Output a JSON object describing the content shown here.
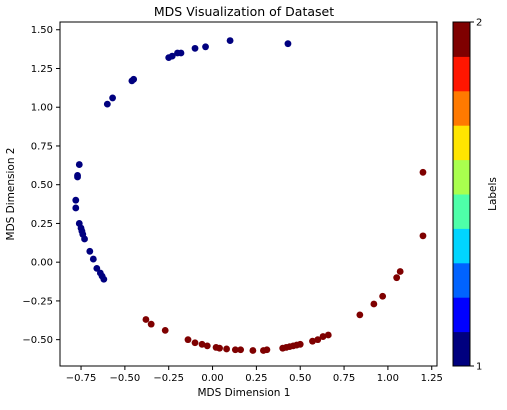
{
  "chart_data": {
    "type": "scatter",
    "title": "MDS Visualization of Dataset",
    "xlabel": "MDS Dimension 1",
    "ylabel": "MDS Dimension 2",
    "xlim": [
      -0.87,
      1.28
    ],
    "ylim": [
      -0.67,
      1.55
    ],
    "xticks": [
      -0.75,
      -0.5,
      -0.25,
      0.0,
      0.25,
      0.5,
      0.75,
      1.0,
      1.25
    ],
    "xtick_labels": [
      "−0.75",
      "−0.50",
      "−0.25",
      "0.00",
      "0.25",
      "0.50",
      "0.75",
      "1.00",
      "1.25"
    ],
    "yticks": [
      -0.5,
      -0.25,
      0.0,
      0.25,
      0.5,
      0.75,
      1.0,
      1.25,
      1.5
    ],
    "ytick_labels": [
      "−0.50",
      "−0.25",
      "0.00",
      "0.25",
      "0.50",
      "0.75",
      "1.00",
      "1.25",
      "1.50"
    ],
    "grid": false,
    "colormap": "jet",
    "colorbar": {
      "label": "Labels",
      "min": 1,
      "max": 2,
      "tick_labels": [
        "1",
        "2"
      ],
      "segments": [
        "#00007f",
        "#0000ff",
        "#0063ff",
        "#00d5ff",
        "#4effa9",
        "#a9ff4e",
        "#ffe500",
        "#ff7a00",
        "#ff1600",
        "#7f0000"
      ]
    },
    "series": [
      {
        "label_value": 1,
        "color": "#00007f",
        "points": [
          [
            0.43,
            1.41
          ],
          [
            0.1,
            1.43
          ],
          [
            -0.04,
            1.39
          ],
          [
            -0.1,
            1.38
          ],
          [
            -0.18,
            1.35
          ],
          [
            -0.2,
            1.35
          ],
          [
            -0.23,
            1.33
          ],
          [
            -0.25,
            1.32
          ],
          [
            -0.45,
            1.18
          ],
          [
            -0.46,
            1.17
          ],
          [
            -0.57,
            1.06
          ],
          [
            -0.6,
            1.02
          ],
          [
            -0.76,
            0.63
          ],
          [
            -0.77,
            0.56
          ],
          [
            -0.77,
            0.55
          ],
          [
            -0.78,
            0.4
          ],
          [
            -0.78,
            0.35
          ],
          [
            -0.76,
            0.25
          ],
          [
            -0.75,
            0.22
          ],
          [
            -0.745,
            0.2
          ],
          [
            -0.74,
            0.18
          ],
          [
            -0.73,
            0.15
          ],
          [
            -0.7,
            0.07
          ],
          [
            -0.68,
            0.02
          ],
          [
            -0.66,
            -0.04
          ],
          [
            -0.64,
            -0.07
          ],
          [
            -0.63,
            -0.09
          ],
          [
            -0.62,
            -0.11
          ]
        ]
      },
      {
        "label_value": 2,
        "color": "#7f0000",
        "points": [
          [
            1.2,
            0.58
          ],
          [
            1.2,
            0.17
          ],
          [
            1.07,
            -0.06
          ],
          [
            1.05,
            -0.1
          ],
          [
            0.97,
            -0.22
          ],
          [
            0.92,
            -0.27
          ],
          [
            0.84,
            -0.34
          ],
          [
            0.66,
            -0.47
          ],
          [
            0.63,
            -0.48
          ],
          [
            0.6,
            -0.5
          ],
          [
            0.57,
            -0.51
          ],
          [
            0.5,
            -0.53
          ],
          [
            0.48,
            -0.535
          ],
          [
            0.46,
            -0.54
          ],
          [
            0.44,
            -0.545
          ],
          [
            0.42,
            -0.55
          ],
          [
            0.4,
            -0.555
          ],
          [
            0.31,
            -0.565
          ],
          [
            0.29,
            -0.57
          ],
          [
            0.23,
            -0.57
          ],
          [
            0.16,
            -0.565
          ],
          [
            0.13,
            -0.565
          ],
          [
            0.08,
            -0.56
          ],
          [
            0.04,
            -0.555
          ],
          [
            0.02,
            -0.55
          ],
          [
            -0.03,
            -0.54
          ],
          [
            -0.06,
            -0.53
          ],
          [
            -0.1,
            -0.52
          ],
          [
            -0.14,
            -0.5
          ],
          [
            -0.27,
            -0.44
          ],
          [
            -0.35,
            -0.4
          ],
          [
            -0.38,
            -0.37
          ]
        ]
      }
    ]
  }
}
